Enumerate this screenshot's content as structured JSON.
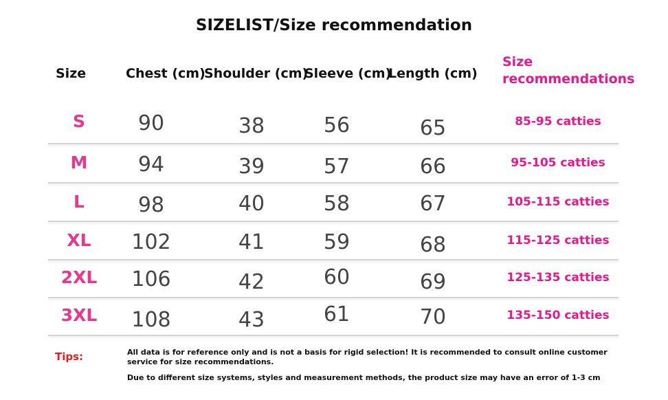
{
  "title": "SIZELIST/Size recommendation",
  "table": {
    "header": [
      "Size",
      "Chest (cm)",
      "Shoulder (cm)",
      "Sleeve (cm)",
      "Length (cm)",
      "Size recommendations"
    ],
    "rows": [
      [
        "S",
        90,
        38,
        56,
        65,
        "85-95 catties"
      ],
      [
        "M",
        94,
        39,
        57,
        66,
        "95-105 catties"
      ],
      [
        "L",
        98,
        40,
        58,
        67,
        "105-115 catties"
      ],
      [
        "XL",
        102,
        41,
        59,
        68,
        "115-125 catties"
      ],
      [
        "2XL",
        106,
        42,
        60,
        69,
        "125-135 catties"
      ],
      [
        "3XL",
        108,
        43,
        61,
        70,
        "135-150 catties"
      ]
    ]
  },
  "tips": {
    "label": "Tips:",
    "notes": [
      "All data is for reference only and is not a basis for rigid selection! It is recommended to consult online customer service for size recommendations.",
      "Due to different size systems, styles and measurement methods, the product size may have an error of 1-3 cm"
    ]
  }
}
